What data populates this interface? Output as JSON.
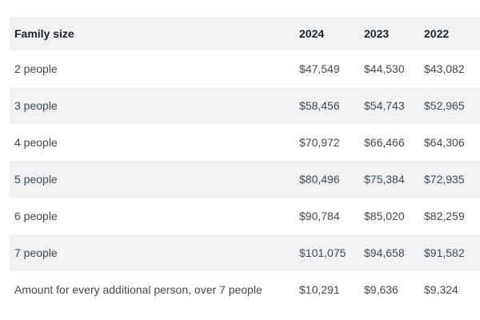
{
  "table": {
    "columns": [
      "Family size",
      "2024",
      "2023",
      "2022"
    ],
    "rows": [
      {
        "label": "2 people",
        "values": [
          "$47,549",
          "$44,530",
          "$43,082"
        ]
      },
      {
        "label": "3 people",
        "values": [
          "$58,456",
          "$54,743",
          "$52,965"
        ]
      },
      {
        "label": "4 people",
        "values": [
          "$70,972",
          "$66,466",
          "$64,306"
        ]
      },
      {
        "label": "5 people",
        "values": [
          "$80,496",
          "$75,384",
          "$72,935"
        ]
      },
      {
        "label": "6 people",
        "values": [
          "$90,784",
          "$85,020",
          "$82,259"
        ]
      },
      {
        "label": "7 people",
        "values": [
          "$101,075",
          "$94,658",
          "$91,582"
        ]
      },
      {
        "label": "Amount for every additional person, over 7 people",
        "values": [
          "$10,291",
          "$9,636",
          "$9,324"
        ]
      }
    ]
  },
  "colors": {
    "stripe_background": "#f1f2f4",
    "header_text": "#212427",
    "body_text": "#45494d",
    "page_background": "#ffffff"
  }
}
